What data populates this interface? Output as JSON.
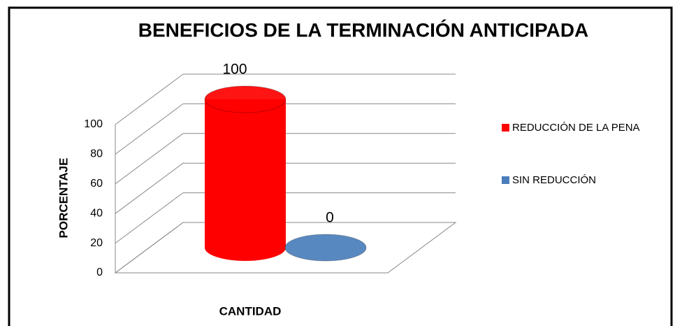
{
  "chart_data": {
    "type": "bar3d",
    "title": "BENEFICIOS DE LA TERMINACIÓN ANTICIPADA",
    "y_label": "PORCENTAJE",
    "x_label": "CANTIDAD",
    "categories": [
      null
    ],
    "series": [
      {
        "name": "REDUCCIÓN DE LA PENA",
        "color": "#ff0000",
        "values": [
          100
        ]
      },
      {
        "name": "SIN REDUCCIÓN",
        "color": "#4a7ebb",
        "values": [
          0
        ]
      }
    ],
    "ylim": [
      0,
      100
    ],
    "yticks": [
      0,
      20,
      40,
      60,
      80,
      100
    ],
    "grid": true,
    "legend": "right"
  }
}
